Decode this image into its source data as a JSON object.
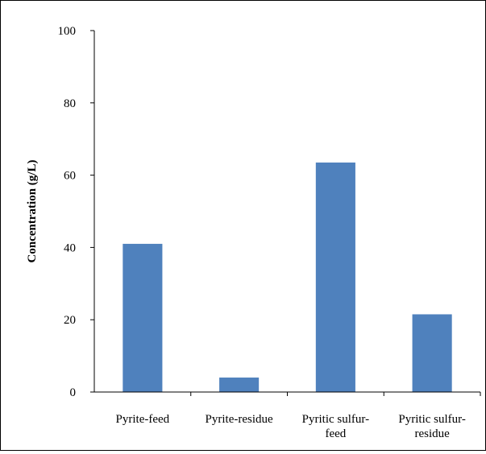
{
  "chart_data": {
    "type": "bar",
    "categories": [
      [
        "Pyrite-feed"
      ],
      [
        "Pyrite-residue"
      ],
      [
        "Pyritic sulfur-",
        "feed"
      ],
      [
        "Pyritic sulfur-",
        "residue"
      ]
    ],
    "values": [
      41,
      4,
      63.5,
      21.5
    ],
    "ylabel": "Concentration (g/L)",
    "xlabel": "",
    "ylim": [
      0,
      100
    ],
    "yticks": [
      0,
      20,
      40,
      60,
      80,
      100
    ],
    "grid": false,
    "legend": "none",
    "bar_color": "#4f81bd"
  }
}
